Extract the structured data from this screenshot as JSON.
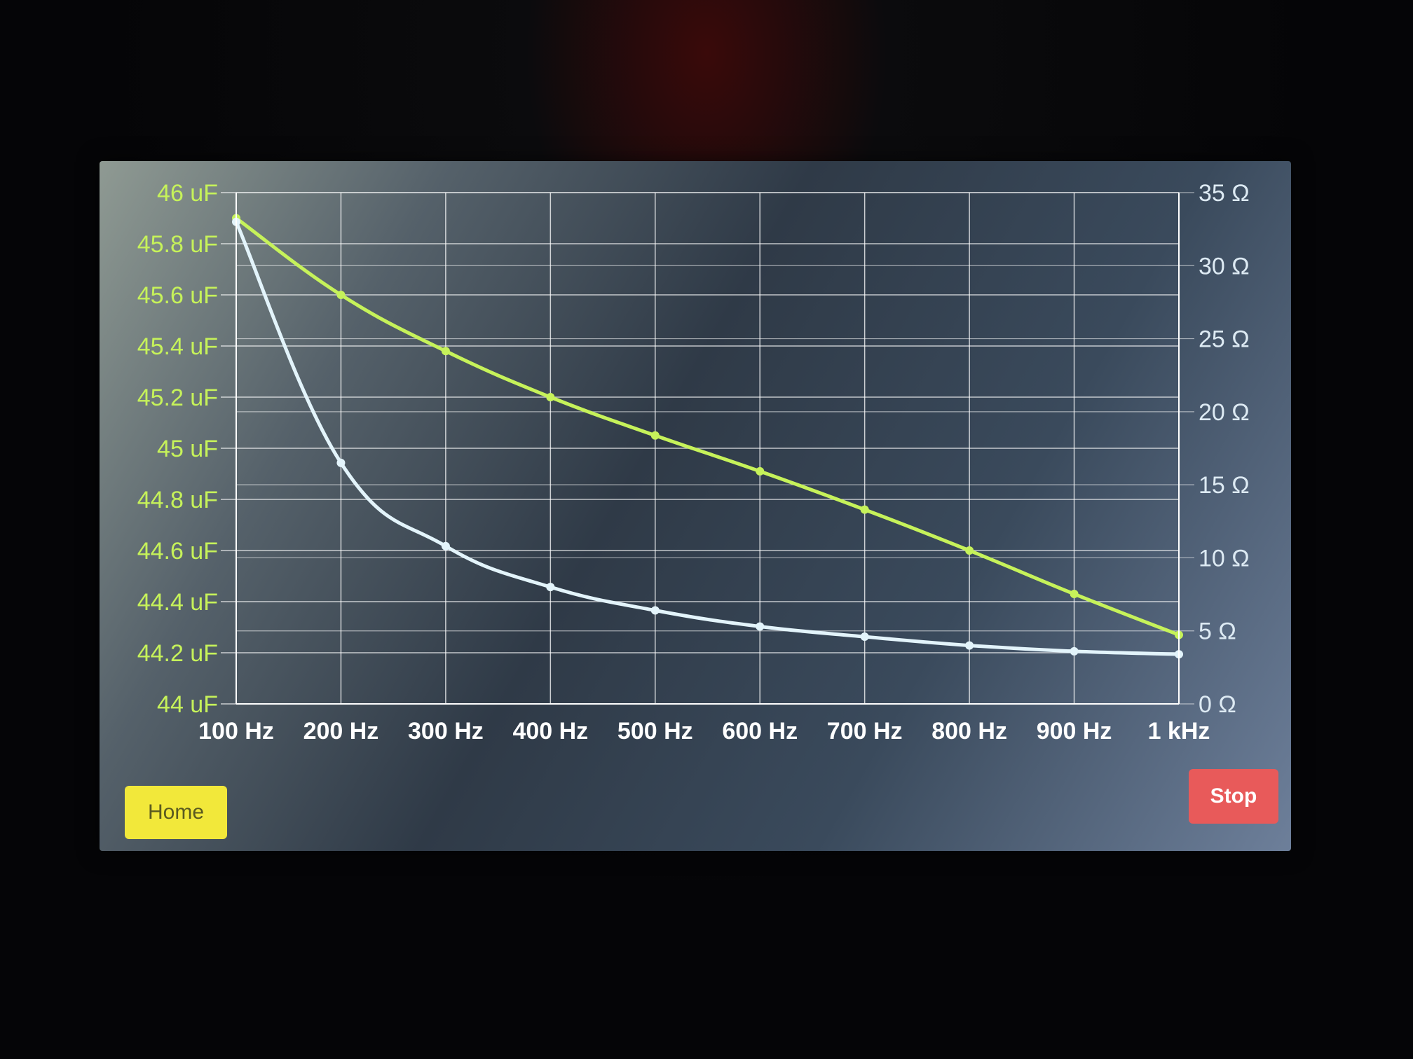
{
  "buttons": {
    "home_label": "Home",
    "stop_label": "Stop"
  },
  "colors": {
    "capacitance_series": "#c6f25a",
    "resistance_series": "#e3f4fb",
    "grid": "#ffffff",
    "home_button": "#f2e83a",
    "stop_button": "#e85a5a"
  },
  "chart_data": {
    "type": "line",
    "title": "",
    "xlabel": "",
    "ylabel": "",
    "ylabel_right": "",
    "categories": [
      "100 Hz",
      "200 Hz",
      "300 Hz",
      "400 Hz",
      "500 Hz",
      "600 Hz",
      "700 Hz",
      "800 Hz",
      "900 Hz",
      "1 kHz"
    ],
    "left_axis": {
      "ylim": [
        44,
        46
      ],
      "ticks": [
        "44 uF",
        "44.2 uF",
        "44.4 uF",
        "44.6 uF",
        "44.8 uF",
        "45 uF",
        "45.2 uF",
        "45.4 uF",
        "45.6 uF",
        "45.8 uF",
        "46 uF"
      ]
    },
    "right_axis": {
      "ylim": [
        0,
        35
      ],
      "ticks": [
        "0 Ω",
        "5 Ω",
        "10 Ω",
        "15 Ω",
        "20 Ω",
        "25 Ω",
        "30 Ω",
        "35 Ω"
      ]
    },
    "series": [
      {
        "axis": "left",
        "color": "#c6f25a",
        "values": [
          45.9,
          45.6,
          45.38,
          45.2,
          45.05,
          44.91,
          44.76,
          44.6,
          44.43,
          44.27
        ]
      },
      {
        "axis": "right",
        "color": "#e3f4fb",
        "values": [
          33.0,
          16.5,
          10.8,
          8.0,
          6.4,
          5.3,
          4.6,
          4.0,
          3.6,
          3.4
        ]
      }
    ],
    "grid": true,
    "legend": "none"
  }
}
